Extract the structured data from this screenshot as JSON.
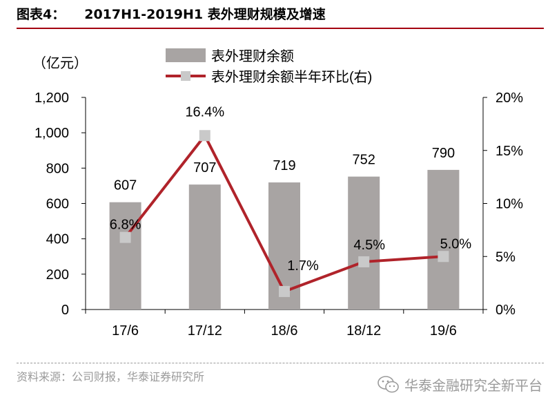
{
  "header": {
    "figure_no": "图表4：",
    "title": "2017H1-2019H1 表外理财规模及增速"
  },
  "chart_data": {
    "type": "bar",
    "categories": [
      "17/6",
      "17/12",
      "18/6",
      "18/12",
      "19/6"
    ],
    "unit_label": "（亿元）",
    "series": [
      {
        "name": "表外理财余额",
        "type": "bar",
        "axis": "left",
        "values": [
          607,
          707,
          719,
          752,
          790
        ],
        "labels": [
          "607",
          "707",
          "719",
          "752",
          "790"
        ],
        "color": "#a8a4a3"
      },
      {
        "name": "表外理财余额半年环比(右)",
        "type": "line",
        "axis": "right",
        "values": [
          6.8,
          16.4,
          1.7,
          4.5,
          5.0
        ],
        "labels": [
          "6.8%",
          "16.4%",
          "1.7%",
          "4.5%",
          "5.0%"
        ],
        "color": "#b0232a",
        "marker_color": "#c9c9c9"
      }
    ],
    "left_axis": {
      "ylim": [
        0,
        1200
      ],
      "ticks": [
        0,
        200,
        400,
        600,
        800,
        1000,
        1200
      ],
      "tick_labels": [
        "0",
        "200",
        "400",
        "600",
        "800",
        "1,000",
        "1,200"
      ]
    },
    "right_axis": {
      "ylim": [
        0,
        20
      ],
      "ticks": [
        0,
        5,
        10,
        15,
        20
      ],
      "tick_labels": [
        "0%",
        "5%",
        "10%",
        "15%",
        "20%"
      ]
    },
    "legend": "top",
    "grid": false
  },
  "footer": {
    "source": "资料来源：公司财报，华泰证券研究所",
    "watermark": "华泰金融研究全新平台"
  }
}
